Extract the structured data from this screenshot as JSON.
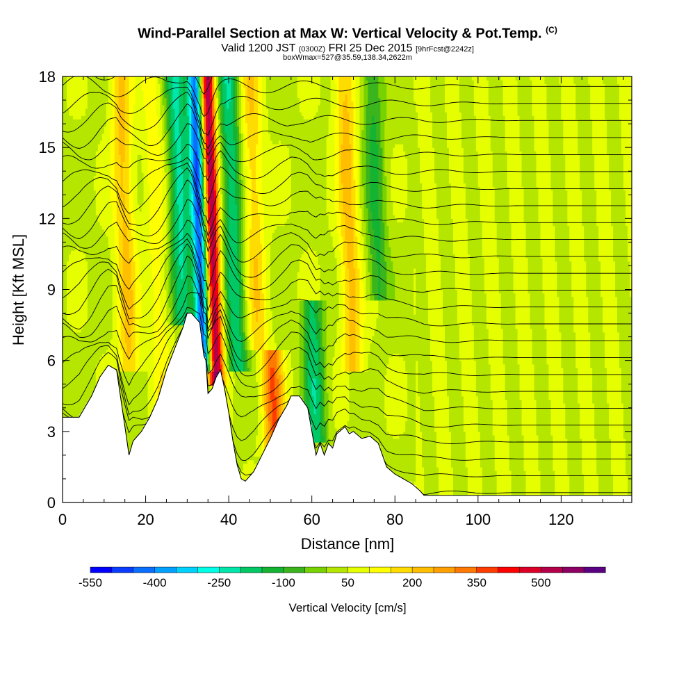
{
  "title": {
    "main": "Wind-Parallel Section at Max W: Vertical Velocity & Pot.Temp.",
    "copyright": "(C)",
    "valid_prefix": "Valid 1200 JST",
    "utc": "(0300Z)",
    "valid_date": "FRI 25 Dec 2015",
    "forecast": "[9hrFcst@2242z]",
    "box_info": "boxWmax=527@35.59,138.34,2622m"
  },
  "chart_data": {
    "type": "heatmap",
    "xlabel": "Distance [nm]",
    "ylabel": "Height [Kft MSL]",
    "xlim": [
      0,
      137
    ],
    "ylim": [
      0,
      18
    ],
    "x_ticks": [
      "0",
      "20",
      "40",
      "60",
      "80",
      "100",
      "120"
    ],
    "y_ticks": [
      "0",
      "3",
      "6",
      "9",
      "12",
      "15",
      "18"
    ],
    "colorbar": {
      "label": "Vertical Velocity [cm/s]",
      "tick_labels": [
        "-550",
        "-400",
        "-250",
        "-100",
        "50",
        "200",
        "350",
        "500"
      ],
      "levels": [
        -550,
        -500,
        -450,
        -400,
        -350,
        -300,
        -250,
        -200,
        -150,
        -100,
        -50,
        0,
        50,
        100,
        150,
        200,
        250,
        300,
        350,
        400,
        450,
        500,
        550,
        600
      ],
      "colors": [
        "#0000ff",
        "#0a3cff",
        "#0a6eff",
        "#00a0ff",
        "#00d2ff",
        "#00ffe6",
        "#00e6aa",
        "#00c864",
        "#14b432",
        "#3cb41e",
        "#78d200",
        "#b4e600",
        "#e6ff00",
        "#ffff00",
        "#ffdc00",
        "#ffbe00",
        "#ffa000",
        "#ff7800",
        "#ff3c00",
        "#ff0000",
        "#dc0028",
        "#b4004b",
        "#8c0064",
        "#5a0082"
      ]
    },
    "terrain_kft": {
      "x": [
        0,
        4,
        7,
        9,
        11,
        13,
        15,
        16,
        17,
        19,
        21,
        23,
        25,
        27,
        29,
        30,
        31,
        33,
        34,
        34.5,
        35,
        36,
        37,
        38,
        39,
        40,
        41,
        42,
        43,
        44,
        46,
        48,
        50,
        52,
        54,
        55,
        57,
        59,
        60,
        61,
        62,
        63,
        64,
        65,
        66,
        68,
        69,
        70,
        72,
        74,
        76,
        78,
        80,
        82,
        84,
        86,
        87,
        88,
        90,
        95,
        100,
        110,
        120,
        130,
        137
      ],
      "y": [
        3.6,
        3.6,
        4.5,
        5.3,
        5.8,
        5.6,
        3.2,
        2.0,
        2.6,
        3.0,
        3.6,
        4.4,
        5.6,
        6.5,
        7.4,
        8.0,
        8.0,
        7.6,
        6.2,
        6.0,
        4.6,
        4.8,
        5.3,
        5.6,
        4.8,
        3.8,
        2.6,
        1.6,
        1.0,
        0.9,
        1.3,
        2.0,
        2.7,
        3.5,
        4.1,
        4.5,
        4.5,
        4.0,
        3.0,
        2.0,
        2.5,
        2.0,
        2.5,
        2.3,
        2.9,
        3.2,
        2.9,
        3.0,
        2.7,
        2.8,
        2.5,
        1.5,
        1.2,
        1.0,
        0.8,
        0.5,
        0.3,
        0.3,
        0.3,
        0.3,
        0.3,
        0.3,
        0.3,
        0.3,
        0.3
      ]
    },
    "velocity_features_cm_s": [
      {
        "x": 16,
        "y_range": [
          6,
          18
        ],
        "peak_w": 170
      },
      {
        "x": 24,
        "y_range": [
          4,
          18
        ],
        "peak_w": 90
      },
      {
        "x": 29,
        "y_range": [
          8,
          18
        ],
        "peak_w": -250
      },
      {
        "x": 34,
        "y_range": [
          6,
          18
        ],
        "peak_w": -500
      },
      {
        "x": 37,
        "y_range": [
          5.5,
          18
        ],
        "peak_w": 527
      },
      {
        "x": 42,
        "y_range": [
          6,
          18
        ],
        "peak_w": -230
      },
      {
        "x": 47,
        "y_range": [
          7,
          18
        ],
        "peak_w": 150
      },
      {
        "x": 51,
        "y_range": [
          2.5,
          6
        ],
        "peak_w": 300
      },
      {
        "x": 61,
        "y_range": [
          3,
          8
        ],
        "peak_w": -220
      },
      {
        "x": 70,
        "y_range": [
          6,
          18
        ],
        "peak_w": 180
      },
      {
        "x": 76,
        "y_range": [
          9,
          18
        ],
        "peak_w": -150
      }
    ]
  }
}
